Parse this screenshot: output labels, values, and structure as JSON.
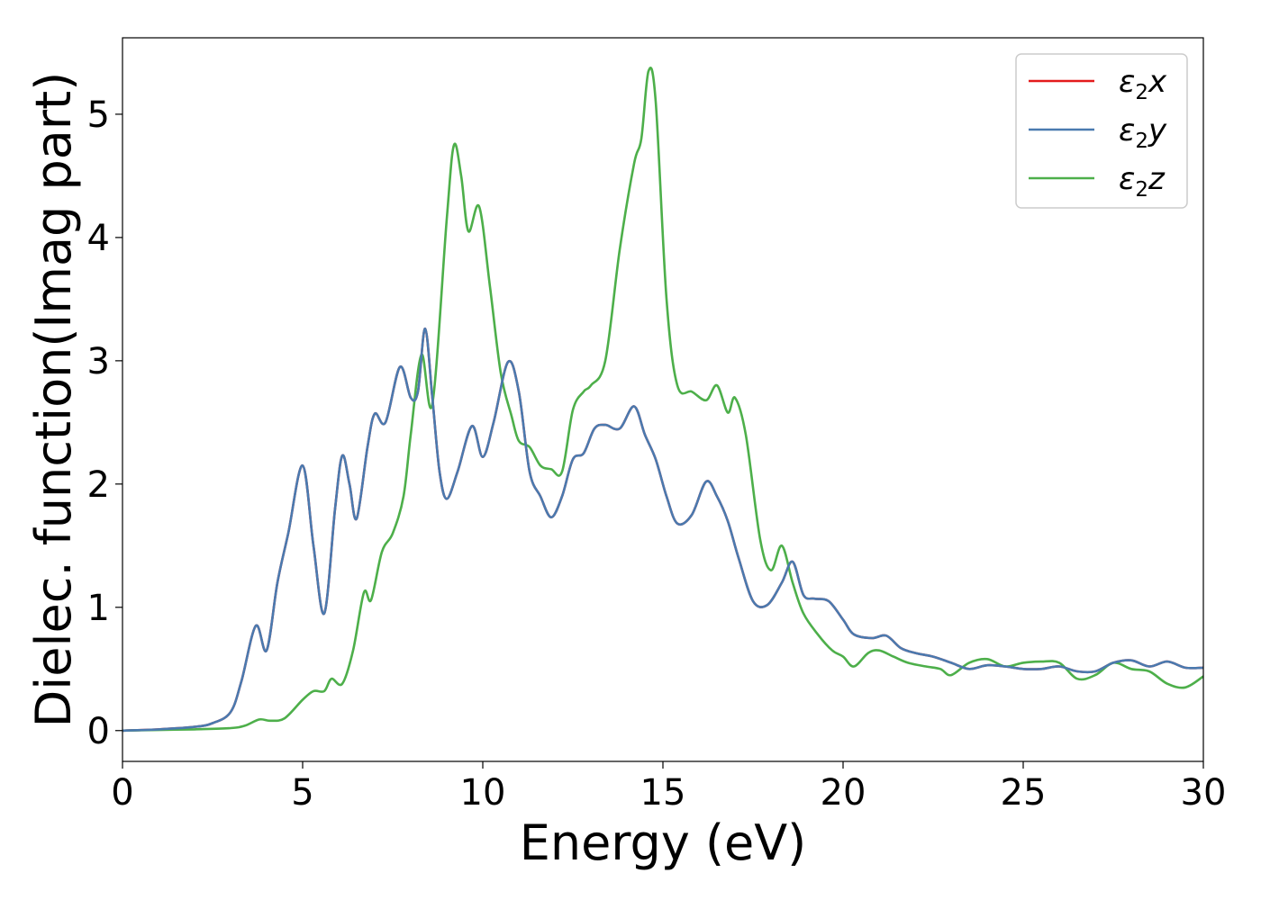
{
  "chart_data": {
    "type": "line",
    "title": "",
    "xlabel": "Energy (eV)",
    "ylabel": "Dielec. function(Imag part)",
    "xlim": [
      0,
      30
    ],
    "ylim": [
      -0.25,
      5.62
    ],
    "xticks": [
      0,
      5,
      10,
      15,
      20,
      25,
      30
    ],
    "yticks": [
      0,
      1,
      2,
      3,
      4,
      5
    ],
    "grid": false,
    "legend_position": "top-right",
    "series": [
      {
        "name": "ε2x",
        "legend_base": "ε",
        "legend_sub": "2",
        "legend_var": "x",
        "color": "#e41a1c",
        "x": [
          0,
          1,
          2,
          2.5,
          3,
          3.3,
          3.7,
          4.0,
          4.3,
          4.6,
          5.0,
          5.3,
          5.6,
          5.9,
          6.1,
          6.3,
          6.5,
          6.8,
          7.0,
          7.3,
          7.7,
          8.0,
          8.2,
          8.4,
          8.6,
          8.8,
          9.0,
          9.3,
          9.7,
          10.0,
          10.3,
          10.7,
          11.0,
          11.3,
          11.6,
          11.9,
          12.2,
          12.5,
          12.8,
          13.1,
          13.4,
          13.8,
          14.2,
          14.5,
          14.8,
          15.1,
          15.4,
          15.8,
          16.2,
          16.5,
          16.8,
          17.1,
          17.5,
          17.9,
          18.3,
          18.6,
          18.9,
          19.2,
          19.6,
          20.0,
          20.3,
          20.8,
          21.2,
          21.6,
          22.0,
          22.5,
          23.0,
          23.5,
          24.0,
          24.5,
          25.0,
          25.5,
          26.0,
          26.5,
          27.0,
          27.5,
          28.0,
          28.5,
          29.0,
          29.5,
          30.0
        ],
        "y": [
          0,
          0.01,
          0.03,
          0.06,
          0.15,
          0.4,
          0.85,
          0.65,
          1.2,
          1.6,
          2.15,
          1.5,
          0.95,
          1.8,
          2.23,
          2.0,
          1.72,
          2.3,
          2.57,
          2.5,
          2.95,
          2.7,
          2.75,
          3.26,
          2.7,
          2.1,
          1.88,
          2.1,
          2.47,
          2.22,
          2.5,
          2.99,
          2.75,
          2.1,
          1.9,
          1.73,
          1.9,
          2.2,
          2.25,
          2.45,
          2.48,
          2.45,
          2.63,
          2.4,
          2.2,
          1.9,
          1.68,
          1.75,
          2.02,
          1.9,
          1.7,
          1.4,
          1.05,
          1.02,
          1.2,
          1.37,
          1.1,
          1.07,
          1.05,
          0.9,
          0.78,
          0.75,
          0.77,
          0.67,
          0.63,
          0.6,
          0.55,
          0.5,
          0.53,
          0.52,
          0.5,
          0.5,
          0.52,
          0.48,
          0.48,
          0.55,
          0.57,
          0.52,
          0.56,
          0.51,
          0.51
        ]
      },
      {
        "name": "ε2y",
        "legend_base": "ε",
        "legend_sub": "2",
        "legend_var": "y",
        "color": "#4a7aaf",
        "x": [
          0,
          1,
          2,
          2.5,
          3,
          3.3,
          3.7,
          4.0,
          4.3,
          4.6,
          5.0,
          5.3,
          5.6,
          5.9,
          6.1,
          6.3,
          6.5,
          6.8,
          7.0,
          7.3,
          7.7,
          8.0,
          8.2,
          8.4,
          8.6,
          8.8,
          9.0,
          9.3,
          9.7,
          10.0,
          10.3,
          10.7,
          11.0,
          11.3,
          11.6,
          11.9,
          12.2,
          12.5,
          12.8,
          13.1,
          13.4,
          13.8,
          14.2,
          14.5,
          14.8,
          15.1,
          15.4,
          15.8,
          16.2,
          16.5,
          16.8,
          17.1,
          17.5,
          17.9,
          18.3,
          18.6,
          18.9,
          19.2,
          19.6,
          20.0,
          20.3,
          20.8,
          21.2,
          21.6,
          22.0,
          22.5,
          23.0,
          23.5,
          24.0,
          24.5,
          25.0,
          25.5,
          26.0,
          26.5,
          27.0,
          27.5,
          28.0,
          28.5,
          29.0,
          29.5,
          30.0
        ],
        "y": [
          0,
          0.01,
          0.03,
          0.06,
          0.15,
          0.4,
          0.85,
          0.65,
          1.2,
          1.6,
          2.15,
          1.5,
          0.95,
          1.8,
          2.23,
          2.0,
          1.72,
          2.3,
          2.57,
          2.5,
          2.95,
          2.7,
          2.75,
          3.26,
          2.7,
          2.1,
          1.88,
          2.1,
          2.47,
          2.22,
          2.5,
          2.99,
          2.75,
          2.1,
          1.9,
          1.73,
          1.9,
          2.2,
          2.25,
          2.45,
          2.48,
          2.45,
          2.63,
          2.4,
          2.2,
          1.9,
          1.68,
          1.75,
          2.02,
          1.9,
          1.7,
          1.4,
          1.05,
          1.02,
          1.2,
          1.37,
          1.1,
          1.07,
          1.05,
          0.9,
          0.78,
          0.75,
          0.77,
          0.67,
          0.63,
          0.6,
          0.55,
          0.5,
          0.53,
          0.52,
          0.5,
          0.5,
          0.52,
          0.48,
          0.48,
          0.55,
          0.57,
          0.52,
          0.56,
          0.51,
          0.51
        ]
      },
      {
        "name": "ε2z",
        "legend_base": "ε",
        "legend_sub": "2",
        "legend_var": "z",
        "color": "#4daf4a",
        "x": [
          0,
          1,
          2,
          3,
          3.4,
          3.8,
          4.1,
          4.5,
          5.0,
          5.3,
          5.6,
          5.8,
          6.1,
          6.4,
          6.7,
          6.9,
          7.2,
          7.5,
          7.8,
          8.0,
          8.3,
          8.6,
          9.0,
          9.2,
          9.4,
          9.6,
          9.9,
          10.2,
          10.5,
          10.8,
          11.0,
          11.3,
          11.6,
          11.9,
          12.2,
          12.5,
          12.8,
          13.0,
          13.4,
          13.8,
          14.2,
          14.4,
          14.6,
          14.8,
          15.1,
          15.4,
          15.8,
          16.2,
          16.5,
          16.8,
          17.0,
          17.3,
          17.7,
          18.0,
          18.3,
          18.6,
          18.9,
          19.3,
          19.7,
          20.0,
          20.3,
          20.7,
          21.0,
          21.4,
          21.8,
          22.3,
          22.7,
          23.0,
          23.5,
          24.0,
          24.5,
          25.0,
          25.5,
          26.0,
          26.5,
          27.0,
          27.5,
          28.0,
          28.5,
          29.0,
          29.5,
          30.0
        ],
        "y": [
          0,
          0.005,
          0.01,
          0.02,
          0.04,
          0.09,
          0.08,
          0.1,
          0.25,
          0.32,
          0.32,
          0.42,
          0.38,
          0.65,
          1.12,
          1.06,
          1.45,
          1.6,
          1.9,
          2.4,
          3.05,
          2.65,
          4.15,
          4.75,
          4.5,
          4.05,
          4.25,
          3.6,
          2.9,
          2.55,
          2.35,
          2.3,
          2.15,
          2.12,
          2.1,
          2.6,
          2.75,
          2.8,
          3.0,
          3.9,
          4.6,
          4.8,
          5.35,
          5.1,
          3.5,
          2.8,
          2.75,
          2.68,
          2.8,
          2.58,
          2.7,
          2.4,
          1.55,
          1.3,
          1.5,
          1.2,
          0.95,
          0.78,
          0.65,
          0.6,
          0.52,
          0.63,
          0.65,
          0.6,
          0.55,
          0.52,
          0.5,
          0.45,
          0.55,
          0.58,
          0.52,
          0.55,
          0.56,
          0.55,
          0.42,
          0.45,
          0.55,
          0.5,
          0.48,
          0.38,
          0.35,
          0.44
        ]
      }
    ]
  }
}
